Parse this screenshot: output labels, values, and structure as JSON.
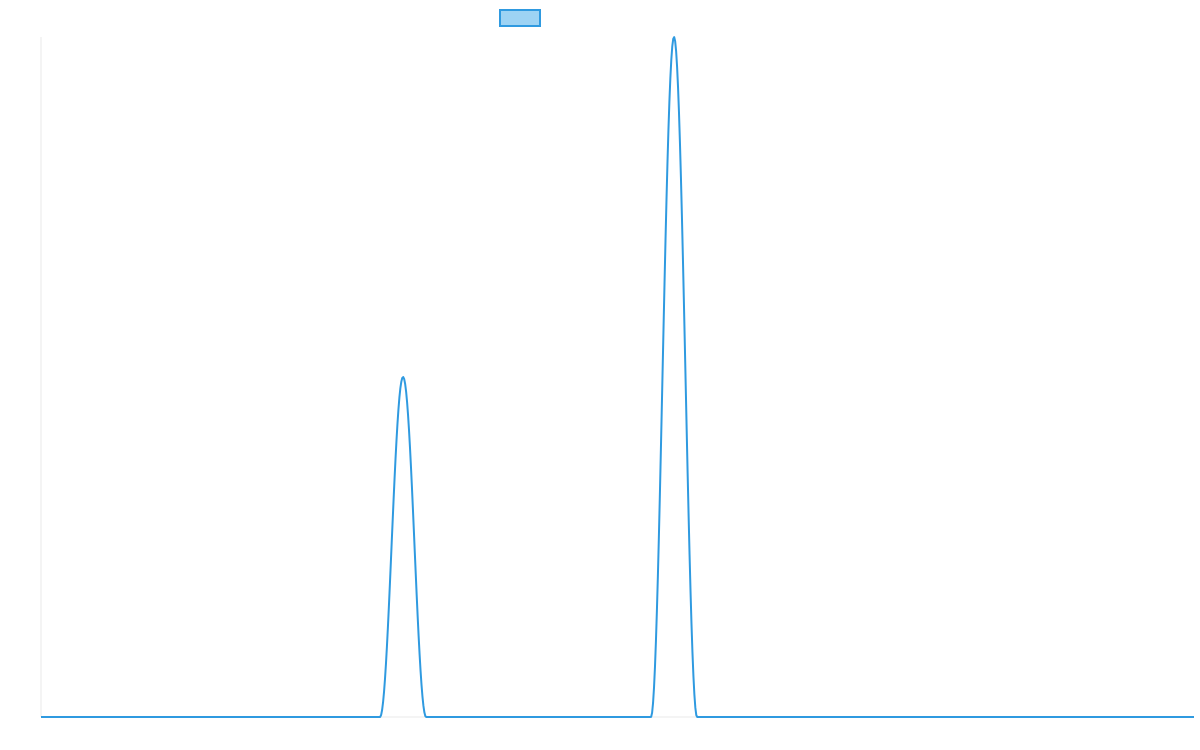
{
  "chart_data": {
    "type": "line",
    "title": "",
    "xlabel": "",
    "ylabel": "",
    "xlim": [
      0,
      100
    ],
    "ylim": [
      0,
      100
    ],
    "grid": false,
    "legend": {
      "position": "top-center",
      "show_label": false
    },
    "series": [
      {
        "color": "#2f9ae0",
        "legend_fill": "#9dd3f4",
        "peaks": [
          {
            "center": 31.4,
            "height": 50,
            "half_width": 2.0
          },
          {
            "center": 54.9,
            "height": 100,
            "half_width": 2.0
          }
        ]
      }
    ]
  }
}
